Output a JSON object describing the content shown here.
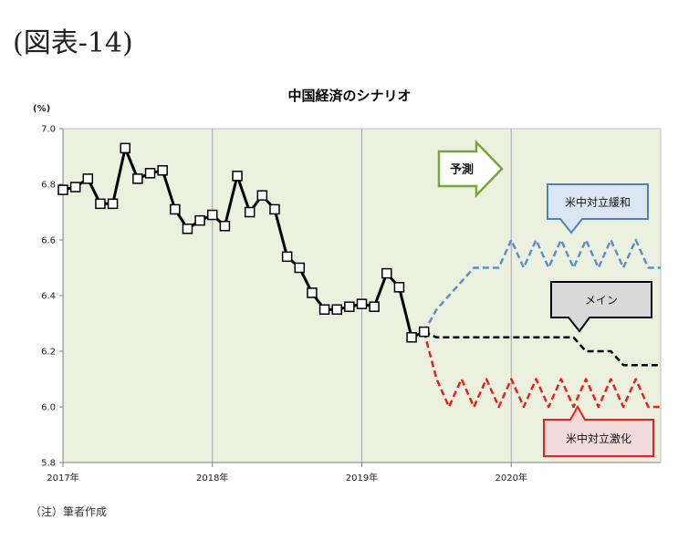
{
  "figure_label": "(図表-14)",
  "note": "（注）筆者作成",
  "chart_data": {
    "type": "line",
    "title": "中国経済のシナリオ",
    "ylabel": "(%)",
    "xlabel": "",
    "ylim": [
      5.8,
      7.0
    ],
    "yticks": [
      "5.8",
      "6.0",
      "6.2",
      "6.4",
      "6.6",
      "6.8",
      "7.0"
    ],
    "xlim": [
      0,
      48
    ],
    "xticks": [
      {
        "x": 0,
        "label": "2017年"
      },
      {
        "x": 12,
        "label": "2018年"
      },
      {
        "x": 24,
        "label": "2019年"
      },
      {
        "x": 36,
        "label": "2020年"
      }
    ],
    "grid": "vertical at year boundaries",
    "forecast_label": "予測",
    "series": [
      {
        "color": "#000000",
        "style": "solid",
        "marker": "square",
        "x": [
          0,
          1,
          2,
          3,
          4,
          5,
          6,
          7,
          8,
          9,
          10,
          11,
          12,
          13,
          14,
          15,
          16,
          17,
          18,
          19,
          20,
          21,
          22,
          23,
          24,
          25,
          26,
          27,
          28,
          29
        ],
        "values": [
          6.78,
          6.79,
          6.82,
          6.73,
          6.73,
          6.93,
          6.82,
          6.84,
          6.85,
          6.71,
          6.64,
          6.67,
          6.69,
          6.65,
          6.83,
          6.7,
          6.76,
          6.71,
          6.54,
          6.5,
          6.41,
          6.35,
          6.35,
          6.36,
          6.37,
          6.36,
          6.48,
          6.43,
          6.25,
          6.27
        ]
      },
      {
        "name": "米中対立緩和",
        "color": "#5b8fc9",
        "style": "dashed",
        "x": [
          29,
          30,
          31,
          32,
          33,
          34,
          35,
          36,
          37,
          38,
          39,
          40,
          41,
          42,
          43,
          44,
          45,
          46,
          47,
          48
        ],
        "values": [
          6.27,
          6.35,
          6.4,
          6.45,
          6.5,
          6.5,
          6.5,
          6.6,
          6.5,
          6.6,
          6.5,
          6.6,
          6.5,
          6.6,
          6.5,
          6.6,
          6.5,
          6.6,
          6.5,
          6.5
        ]
      },
      {
        "name": "メイン",
        "color": "#000000",
        "style": "dashed",
        "x": [
          29,
          30,
          31,
          32,
          33,
          34,
          35,
          36,
          37,
          38,
          39,
          40,
          41,
          42,
          43,
          44,
          45,
          46,
          47,
          48
        ],
        "values": [
          6.27,
          6.25,
          6.25,
          6.25,
          6.25,
          6.25,
          6.25,
          6.25,
          6.25,
          6.25,
          6.25,
          6.25,
          6.25,
          6.2,
          6.2,
          6.2,
          6.15,
          6.15,
          6.15,
          6.15
        ]
      },
      {
        "name": "米中対立激化",
        "color": "#e8211a",
        "style": "dashed",
        "x": [
          29,
          30,
          31,
          32,
          33,
          34,
          35,
          36,
          37,
          38,
          39,
          40,
          41,
          42,
          43,
          44,
          45,
          46,
          47,
          48
        ],
        "values": [
          6.27,
          6.1,
          6.0,
          6.1,
          6.0,
          6.1,
          6.0,
          6.1,
          6.0,
          6.1,
          6.0,
          6.1,
          6.0,
          6.1,
          6.0,
          6.1,
          6.0,
          6.1,
          6.0,
          6.0
        ]
      }
    ]
  },
  "colors": {
    "plot_background": "#ebf1de",
    "forecast_arrow_border": "#77a63a",
    "easing_callout_border": "#4f81bd",
    "easing_callout_fill": "#dce6f2",
    "main_callout_border": "#000000",
    "main_callout_fill": "#d9d9d9",
    "escalation_callout_border": "#e8211a",
    "escalation_callout_fill": "#f2dcdb"
  }
}
